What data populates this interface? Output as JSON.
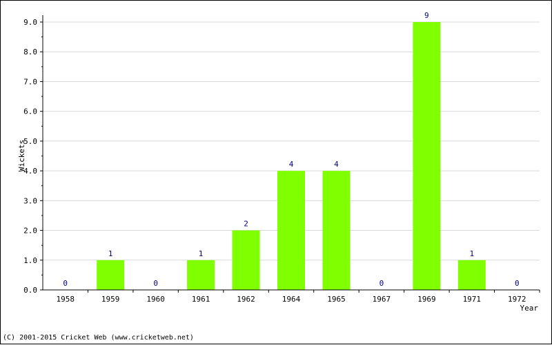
{
  "footer": "(C) 2001-2015 Cricket Web (www.cricketweb.net)",
  "chart_data": {
    "type": "bar",
    "title": "",
    "xlabel": "Year",
    "ylabel": "Wickets",
    "categories": [
      "1958",
      "1959",
      "1960",
      "1961",
      "1962",
      "1964",
      "1965",
      "1967",
      "1969",
      "1971",
      "1972"
    ],
    "values": [
      0,
      1,
      0,
      1,
      2,
      4,
      4,
      0,
      9,
      1,
      0
    ],
    "data_labels": [
      "0",
      "1",
      "0",
      "1",
      "2",
      "4",
      "4",
      "0",
      "9",
      "1",
      "0"
    ],
    "ylim": [
      0,
      9
    ],
    "yticks": [
      0,
      1,
      2,
      3,
      4,
      5,
      6,
      7,
      8,
      9
    ],
    "ytick_labels": [
      "0.0",
      "1.0",
      "2.0",
      "3.0",
      "4.0",
      "5.0",
      "6.0",
      "7.0",
      "8.0",
      "9.0"
    ],
    "grid": true,
    "bar_color": "#7fff00",
    "label_color": "#000080"
  }
}
